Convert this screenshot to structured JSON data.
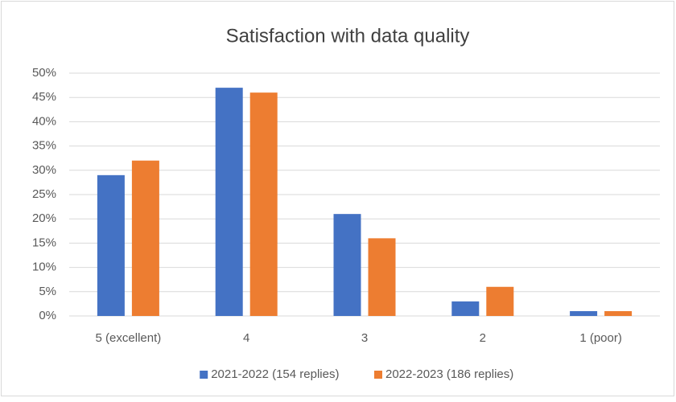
{
  "chart_data": {
    "type": "bar",
    "title": "Satisfaction with data quality",
    "categories": [
      "5 (excellent)",
      "4",
      "3",
      "2",
      "1 (poor)"
    ],
    "series": [
      {
        "name": "2021-2022 (154 replies)",
        "color": "#4472c4",
        "values": [
          29,
          47,
          21,
          3,
          1
        ]
      },
      {
        "name": "2022-2023 (186 replies)",
        "color": "#ed7d31",
        "values": [
          32,
          46,
          16,
          6,
          1
        ]
      }
    ],
    "ylim": [
      0,
      50
    ],
    "yticks": [
      {
        "value": 0,
        "label": "0%"
      },
      {
        "value": 5,
        "label": "5%"
      },
      {
        "value": 10,
        "label": "10%"
      },
      {
        "value": 15,
        "label": "15%"
      },
      {
        "value": 20,
        "label": "20%"
      },
      {
        "value": 25,
        "label": "25%"
      },
      {
        "value": 30,
        "label": "30%"
      },
      {
        "value": 35,
        "label": "35%"
      },
      {
        "value": 40,
        "label": "40%"
      },
      {
        "value": 45,
        "label": "45%"
      },
      {
        "value": 50,
        "label": "50%"
      }
    ],
    "grid": true,
    "legend": "bottom"
  }
}
